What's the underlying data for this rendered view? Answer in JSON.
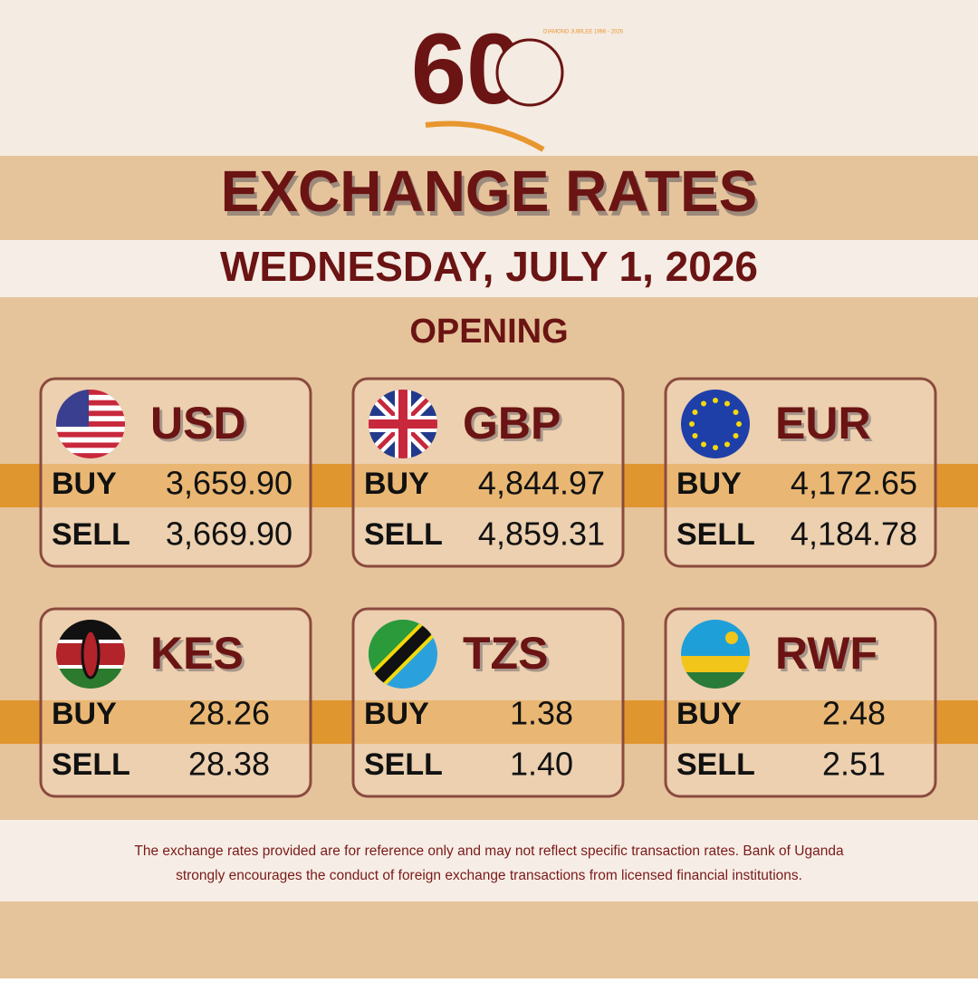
{
  "logo": {
    "number": "60",
    "caption": "DIAMOND JUBILEE 1966 - 2026"
  },
  "header": {
    "title": "EXCHANGE RATES",
    "date": "WEDNESDAY, JULY 1, 2026",
    "session": "OPENING"
  },
  "cards": [
    {
      "code": "USD",
      "buy_label": "BUY",
      "buy": "3,659.90",
      "sell_label": "SELL",
      "sell": "3,669.90"
    },
    {
      "code": "GBP",
      "buy_label": "BUY",
      "buy": "4,844.97",
      "sell_label": "SELL",
      "sell": "4,859.31"
    },
    {
      "code": "EUR",
      "buy_label": "BUY",
      "buy": "4,172.65",
      "sell_label": "SELL",
      "sell": "4,184.78"
    },
    {
      "code": "KES",
      "buy_label": "BUY",
      "buy": "28.26",
      "sell_label": "SELL",
      "sell": "28.38"
    },
    {
      "code": "TZS",
      "buy_label": "BUY",
      "buy": "1.38",
      "sell_label": "SELL",
      "sell": "1.40"
    },
    {
      "code": "RWF",
      "buy_label": "BUY",
      "buy": "2.48",
      "sell_label": "SELL",
      "sell": "2.51"
    }
  ],
  "footer": {
    "disclaimer_line1": "The exchange rates provided are for reference only and may not reflect specific transaction rates. Bank of Uganda",
    "disclaimer_line2": "strongly encourages the conduct of foreign exchange transactions from licensed financial institutions."
  }
}
